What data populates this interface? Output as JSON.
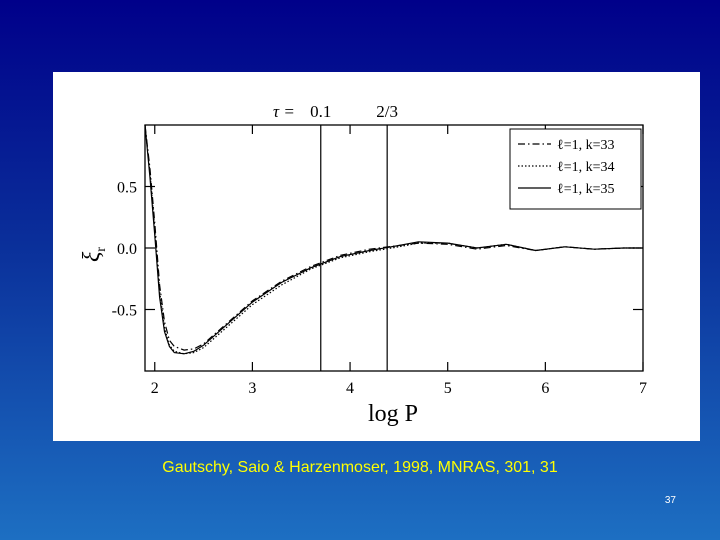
{
  "caption": "Gautschy, Saio & Harzenmoser, 1998, MNRAS, 301, 31",
  "slide_number": "37",
  "chart_data": {
    "type": "line",
    "xlabel": "log P",
    "ylabel": "ξr",
    "ylabel_main": "ξ",
    "ylabel_sub": "r",
    "xlim": [
      1.9,
      7.0
    ],
    "ylim": [
      -1.0,
      1.0
    ],
    "xticks": [
      "2",
      "3",
      "4",
      "5",
      "6",
      "7"
    ],
    "yticks": [
      "0.5",
      "0.0",
      "-0.5"
    ],
    "tau_prefix": "τ =",
    "tau_markers": [
      {
        "label": "0.1",
        "x": 3.7
      },
      {
        "label": "2/3",
        "x": 4.38
      }
    ],
    "legend_position": "top-right",
    "series": [
      {
        "name": "ℓ=1, k=33",
        "style": "dashdot",
        "x": [
          1.9,
          1.95,
          2.0,
          2.05,
          2.1,
          2.15,
          2.2,
          2.3,
          2.4,
          2.5,
          2.7,
          3.0,
          3.3,
          3.6,
          3.9,
          4.2,
          4.5,
          4.7,
          5.0,
          5.3,
          5.6,
          5.9,
          6.2,
          6.5,
          6.8,
          7.0
        ],
        "y": [
          1.0,
          0.65,
          0.2,
          -0.3,
          -0.6,
          -0.75,
          -0.8,
          -0.83,
          -0.82,
          -0.78,
          -0.64,
          -0.43,
          -0.27,
          -0.15,
          -0.06,
          -0.01,
          0.02,
          0.04,
          0.03,
          -0.01,
          0.02,
          -0.02,
          0.01,
          -0.01,
          0.0,
          0.0
        ]
      },
      {
        "name": "ℓ=1, k=34",
        "style": "dotted",
        "x": [
          1.9,
          1.95,
          2.0,
          2.05,
          2.1,
          2.15,
          2.2,
          2.3,
          2.4,
          2.5,
          2.7,
          3.0,
          3.3,
          3.6,
          3.9,
          4.2,
          4.5,
          4.7,
          5.0,
          5.3,
          5.6,
          5.9,
          6.2,
          6.5,
          6.8,
          7.0
        ],
        "y": [
          1.0,
          0.62,
          0.15,
          -0.35,
          -0.65,
          -0.79,
          -0.84,
          -0.86,
          -0.85,
          -0.81,
          -0.67,
          -0.46,
          -0.3,
          -0.17,
          -0.08,
          -0.03,
          0.01,
          0.04,
          0.04,
          0.0,
          0.03,
          -0.02,
          0.01,
          -0.01,
          0.0,
          0.0
        ]
      },
      {
        "name": "ℓ=1, k=35",
        "style": "solid",
        "x": [
          1.9,
          1.95,
          2.0,
          2.05,
          2.1,
          2.15,
          2.2,
          2.3,
          2.4,
          2.5,
          2.7,
          3.0,
          3.3,
          3.6,
          3.9,
          4.2,
          4.5,
          4.7,
          5.0,
          5.3,
          5.6,
          5.9,
          6.2,
          6.5,
          6.8,
          7.0
        ],
        "y": [
          1.0,
          0.58,
          0.1,
          -0.4,
          -0.68,
          -0.8,
          -0.85,
          -0.86,
          -0.84,
          -0.79,
          -0.65,
          -0.44,
          -0.28,
          -0.16,
          -0.07,
          -0.02,
          0.02,
          0.05,
          0.04,
          0.0,
          0.03,
          -0.02,
          0.01,
          -0.01,
          0.0,
          0.0
        ]
      }
    ]
  }
}
